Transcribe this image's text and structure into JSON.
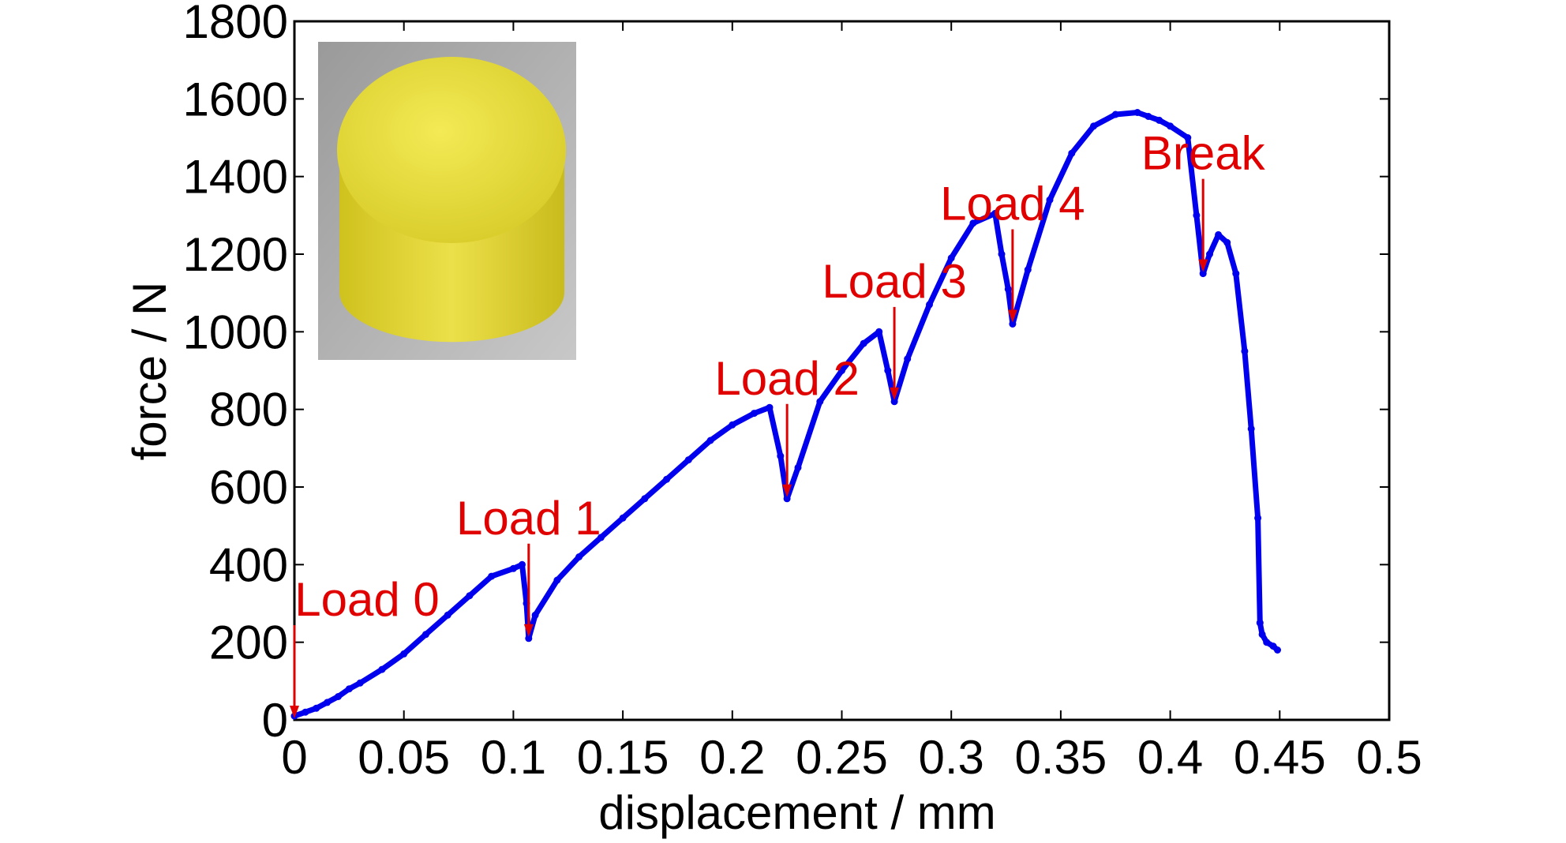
{
  "chart_data": {
    "type": "line",
    "title": "",
    "xlabel": "displacement / mm",
    "ylabel": "force / N",
    "xlim": [
      0,
      0.5
    ],
    "ylim": [
      0,
      1800
    ],
    "x_ticks": [
      "0",
      "0.05",
      "0.1",
      "0.15",
      "0.2",
      "0.25",
      "0.3",
      "0.35",
      "0.4",
      "0.45",
      "0.5"
    ],
    "y_ticks": [
      "0",
      "200",
      "400",
      "600",
      "800",
      "1000",
      "1200",
      "1400",
      "1600",
      "1800"
    ],
    "grid": false,
    "series": [
      {
        "color": "#0000ee",
        "x": [
          0,
          0.005,
          0.01,
          0.015,
          0.02,
          0.025,
          0.03,
          0.04,
          0.05,
          0.06,
          0.07,
          0.08,
          0.09,
          0.1,
          0.104,
          0.106,
          0.107,
          0.11,
          0.12,
          0.13,
          0.14,
          0.15,
          0.16,
          0.17,
          0.18,
          0.19,
          0.2,
          0.21,
          0.217,
          0.222,
          0.225,
          0.23,
          0.24,
          0.25,
          0.26,
          0.267,
          0.271,
          0.274,
          0.28,
          0.29,
          0.3,
          0.31,
          0.32,
          0.323,
          0.326,
          0.328,
          0.335,
          0.345,
          0.355,
          0.365,
          0.375,
          0.385,
          0.39,
          0.395,
          0.4,
          0.408,
          0.412,
          0.415,
          0.418,
          0.422,
          0.426,
          0.43,
          0.434,
          0.437,
          0.44,
          0.441,
          0.442,
          0.444,
          0.447,
          0.449
        ],
        "y": [
          10,
          20,
          30,
          45,
          60,
          80,
          95,
          130,
          170,
          220,
          270,
          320,
          370,
          390,
          400,
          300,
          210,
          270,
          360,
          420,
          470,
          520,
          570,
          620,
          670,
          720,
          760,
          790,
          805,
          680,
          570,
          650,
          820,
          900,
          970,
          1000,
          900,
          820,
          930,
          1070,
          1190,
          1280,
          1305,
          1200,
          1110,
          1020,
          1160,
          1340,
          1460,
          1530,
          1560,
          1565,
          1555,
          1545,
          1530,
          1500,
          1300,
          1150,
          1200,
          1250,
          1230,
          1150,
          950,
          750,
          520,
          250,
          220,
          200,
          190,
          180
        ]
      }
    ],
    "annotations": [
      {
        "text": "Load 0",
        "x": 0,
        "y": 0
      },
      {
        "text": "Load 1",
        "x": 0.107,
        "y": 210
      },
      {
        "text": "Load 2",
        "x": 0.225,
        "y": 570
      },
      {
        "text": "Load 3",
        "x": 0.274,
        "y": 820
      },
      {
        "text": "Load 4",
        "x": 0.328,
        "y": 1020
      },
      {
        "text": "Break",
        "x": 0.415,
        "y": 1150
      }
    ],
    "annotation_color": "#e00000",
    "inset_image": {
      "description_color": "#e6dc3a"
    }
  }
}
